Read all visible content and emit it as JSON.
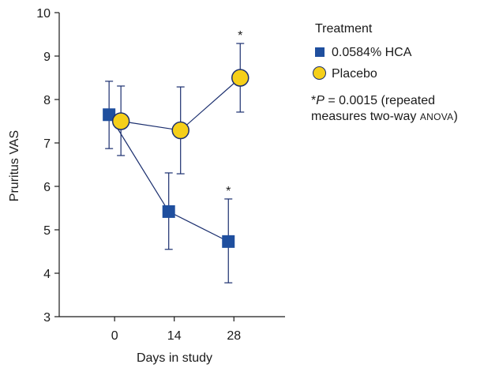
{
  "chart_data": {
    "type": "line",
    "xlabel": "Days in study",
    "ylabel": "Pruritus VAS",
    "xlim": [
      -13,
      40
    ],
    "ylim": [
      3,
      10
    ],
    "x_ticks": [
      0,
      14,
      28
    ],
    "y_ticks": [
      3,
      4,
      5,
      6,
      7,
      8,
      9,
      10
    ],
    "legend_title": "Treatment",
    "legend_position": "right",
    "series": [
      {
        "name": "0.0584% HCA",
        "marker": "square",
        "color": "#1f4f9e",
        "x": [
          0,
          14,
          28
        ],
        "y": [
          7.65,
          5.42,
          4.73
        ],
        "err_low": [
          6.87,
          4.55,
          3.78
        ],
        "err_high": [
          8.42,
          6.31,
          5.71
        ],
        "significance": [
          "",
          "",
          "*"
        ]
      },
      {
        "name": "Placebo",
        "marker": "circle",
        "color": "#f5cf1a",
        "x": [
          0,
          14,
          28
        ],
        "y": [
          7.5,
          7.29,
          8.5
        ],
        "err_low": [
          6.71,
          6.29,
          7.71
        ],
        "err_high": [
          8.31,
          8.29,
          9.29
        ],
        "significance": [
          "",
          "",
          "*"
        ]
      }
    ],
    "annotation": {
      "star": "*",
      "p_symbol": "P",
      "p_value": " = 0.0015 (repeated",
      "line2_start": "measures two-way ",
      "method": "ANOVA",
      "line2_end": ")"
    }
  },
  "colors": {
    "axis": "#1a1a1a",
    "error_bars": "#1a2e6e",
    "hca": "#1f4f9e",
    "placebo": "#f5cf1a"
  }
}
